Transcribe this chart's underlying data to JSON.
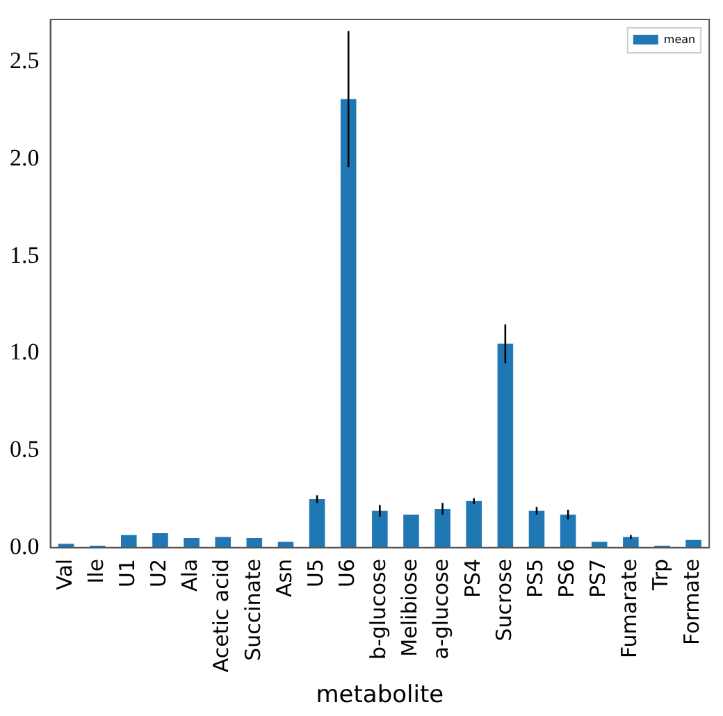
{
  "chart_data": {
    "type": "bar",
    "xlabel": "metabolite",
    "categories": [
      "Val",
      "Ile",
      "U1",
      "U2",
      "Ala",
      "Acetic acid",
      "Succinate",
      "Asn",
      "U5",
      "U6",
      "b-glucose",
      "Melibiose",
      "a-glucose",
      "PS4",
      "Sucrose",
      "PS5",
      "PS6",
      "PS7",
      "Fumarate",
      "Trp",
      "Formate"
    ],
    "series": [
      {
        "name": "mean",
        "color": "#1f77b4",
        "values": [
          0.02,
          0.01,
          0.065,
          0.075,
          0.05,
          0.055,
          0.05,
          0.03,
          0.25,
          2.31,
          0.19,
          0.17,
          0.2,
          0.24,
          1.05,
          0.19,
          0.17,
          0.03,
          0.055,
          0.01,
          0.04
        ],
        "errors": [
          null,
          null,
          null,
          null,
          null,
          null,
          null,
          null,
          0.02,
          0.35,
          0.03,
          null,
          0.03,
          0.015,
          0.1,
          0.02,
          0.025,
          null,
          0.01,
          null,
          null
        ]
      }
    ],
    "ylim": [
      0,
      2.72
    ],
    "yticks": [
      {
        "value": 0,
        "label": "0.0"
      },
      {
        "value": 0.5,
        "label": "0.5"
      },
      {
        "value": 1,
        "label": "1.0"
      },
      {
        "value": 1.5,
        "label": "1.5"
      },
      {
        "value": 2,
        "label": "2.0"
      },
      {
        "value": 2.5,
        "label": "2.5"
      }
    ],
    "legend": "top right",
    "grid": false
  }
}
